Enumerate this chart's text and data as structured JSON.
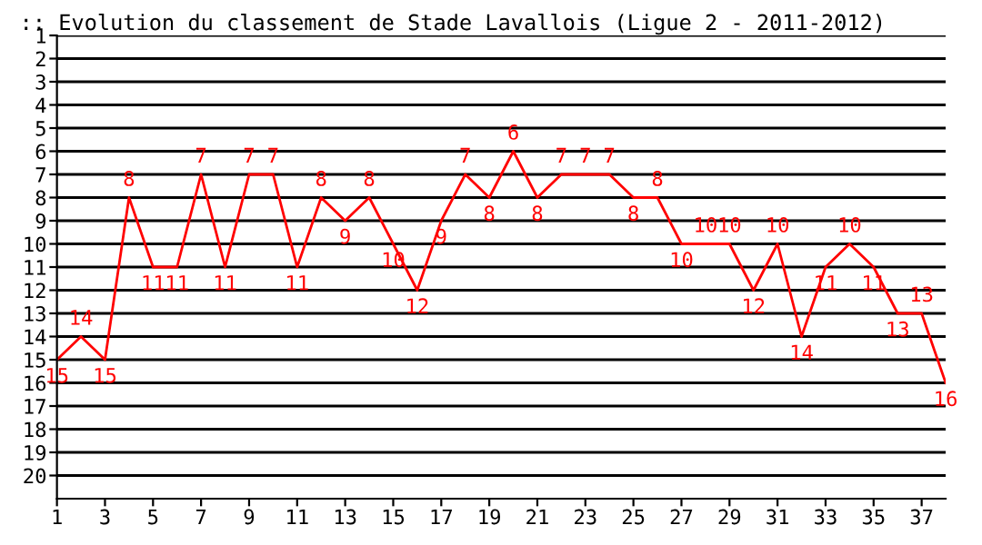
{
  "chart_data": {
    "type": "line",
    "title": ":: Evolution du classement de Stade Lavallois (Ligue 2 - 2011-2012)",
    "x": [
      1,
      2,
      3,
      4,
      5,
      6,
      7,
      8,
      9,
      10,
      11,
      12,
      13,
      14,
      15,
      16,
      17,
      18,
      19,
      20,
      21,
      22,
      23,
      24,
      25,
      26,
      27,
      28,
      29,
      30,
      31,
      32,
      33,
      34,
      35,
      36,
      37,
      38
    ],
    "series": [
      {
        "color": "#ff0000",
        "values": [
          15,
          14,
          15,
          8,
          11,
          11,
          7,
          11,
          7,
          7,
          11,
          8,
          9,
          8,
          10,
          12,
          9,
          7,
          8,
          6,
          8,
          7,
          7,
          7,
          8,
          8,
          10,
          10,
          10,
          12,
          10,
          14,
          11,
          10,
          11,
          13,
          13,
          16
        ]
      }
    ],
    "xlim": [
      1,
      38
    ],
    "xticks": [
      1,
      3,
      5,
      7,
      9,
      11,
      13,
      15,
      17,
      19,
      21,
      23,
      25,
      27,
      29,
      31,
      33,
      35,
      37
    ],
    "ylim": [
      21,
      1
    ],
    "yticks": [
      1,
      2,
      3,
      4,
      5,
      6,
      7,
      8,
      9,
      10,
      11,
      12,
      13,
      14,
      15,
      16,
      17,
      18,
      19,
      20
    ],
    "grid": "y",
    "data_labels": true,
    "marker": "none",
    "line_style": "solid"
  }
}
